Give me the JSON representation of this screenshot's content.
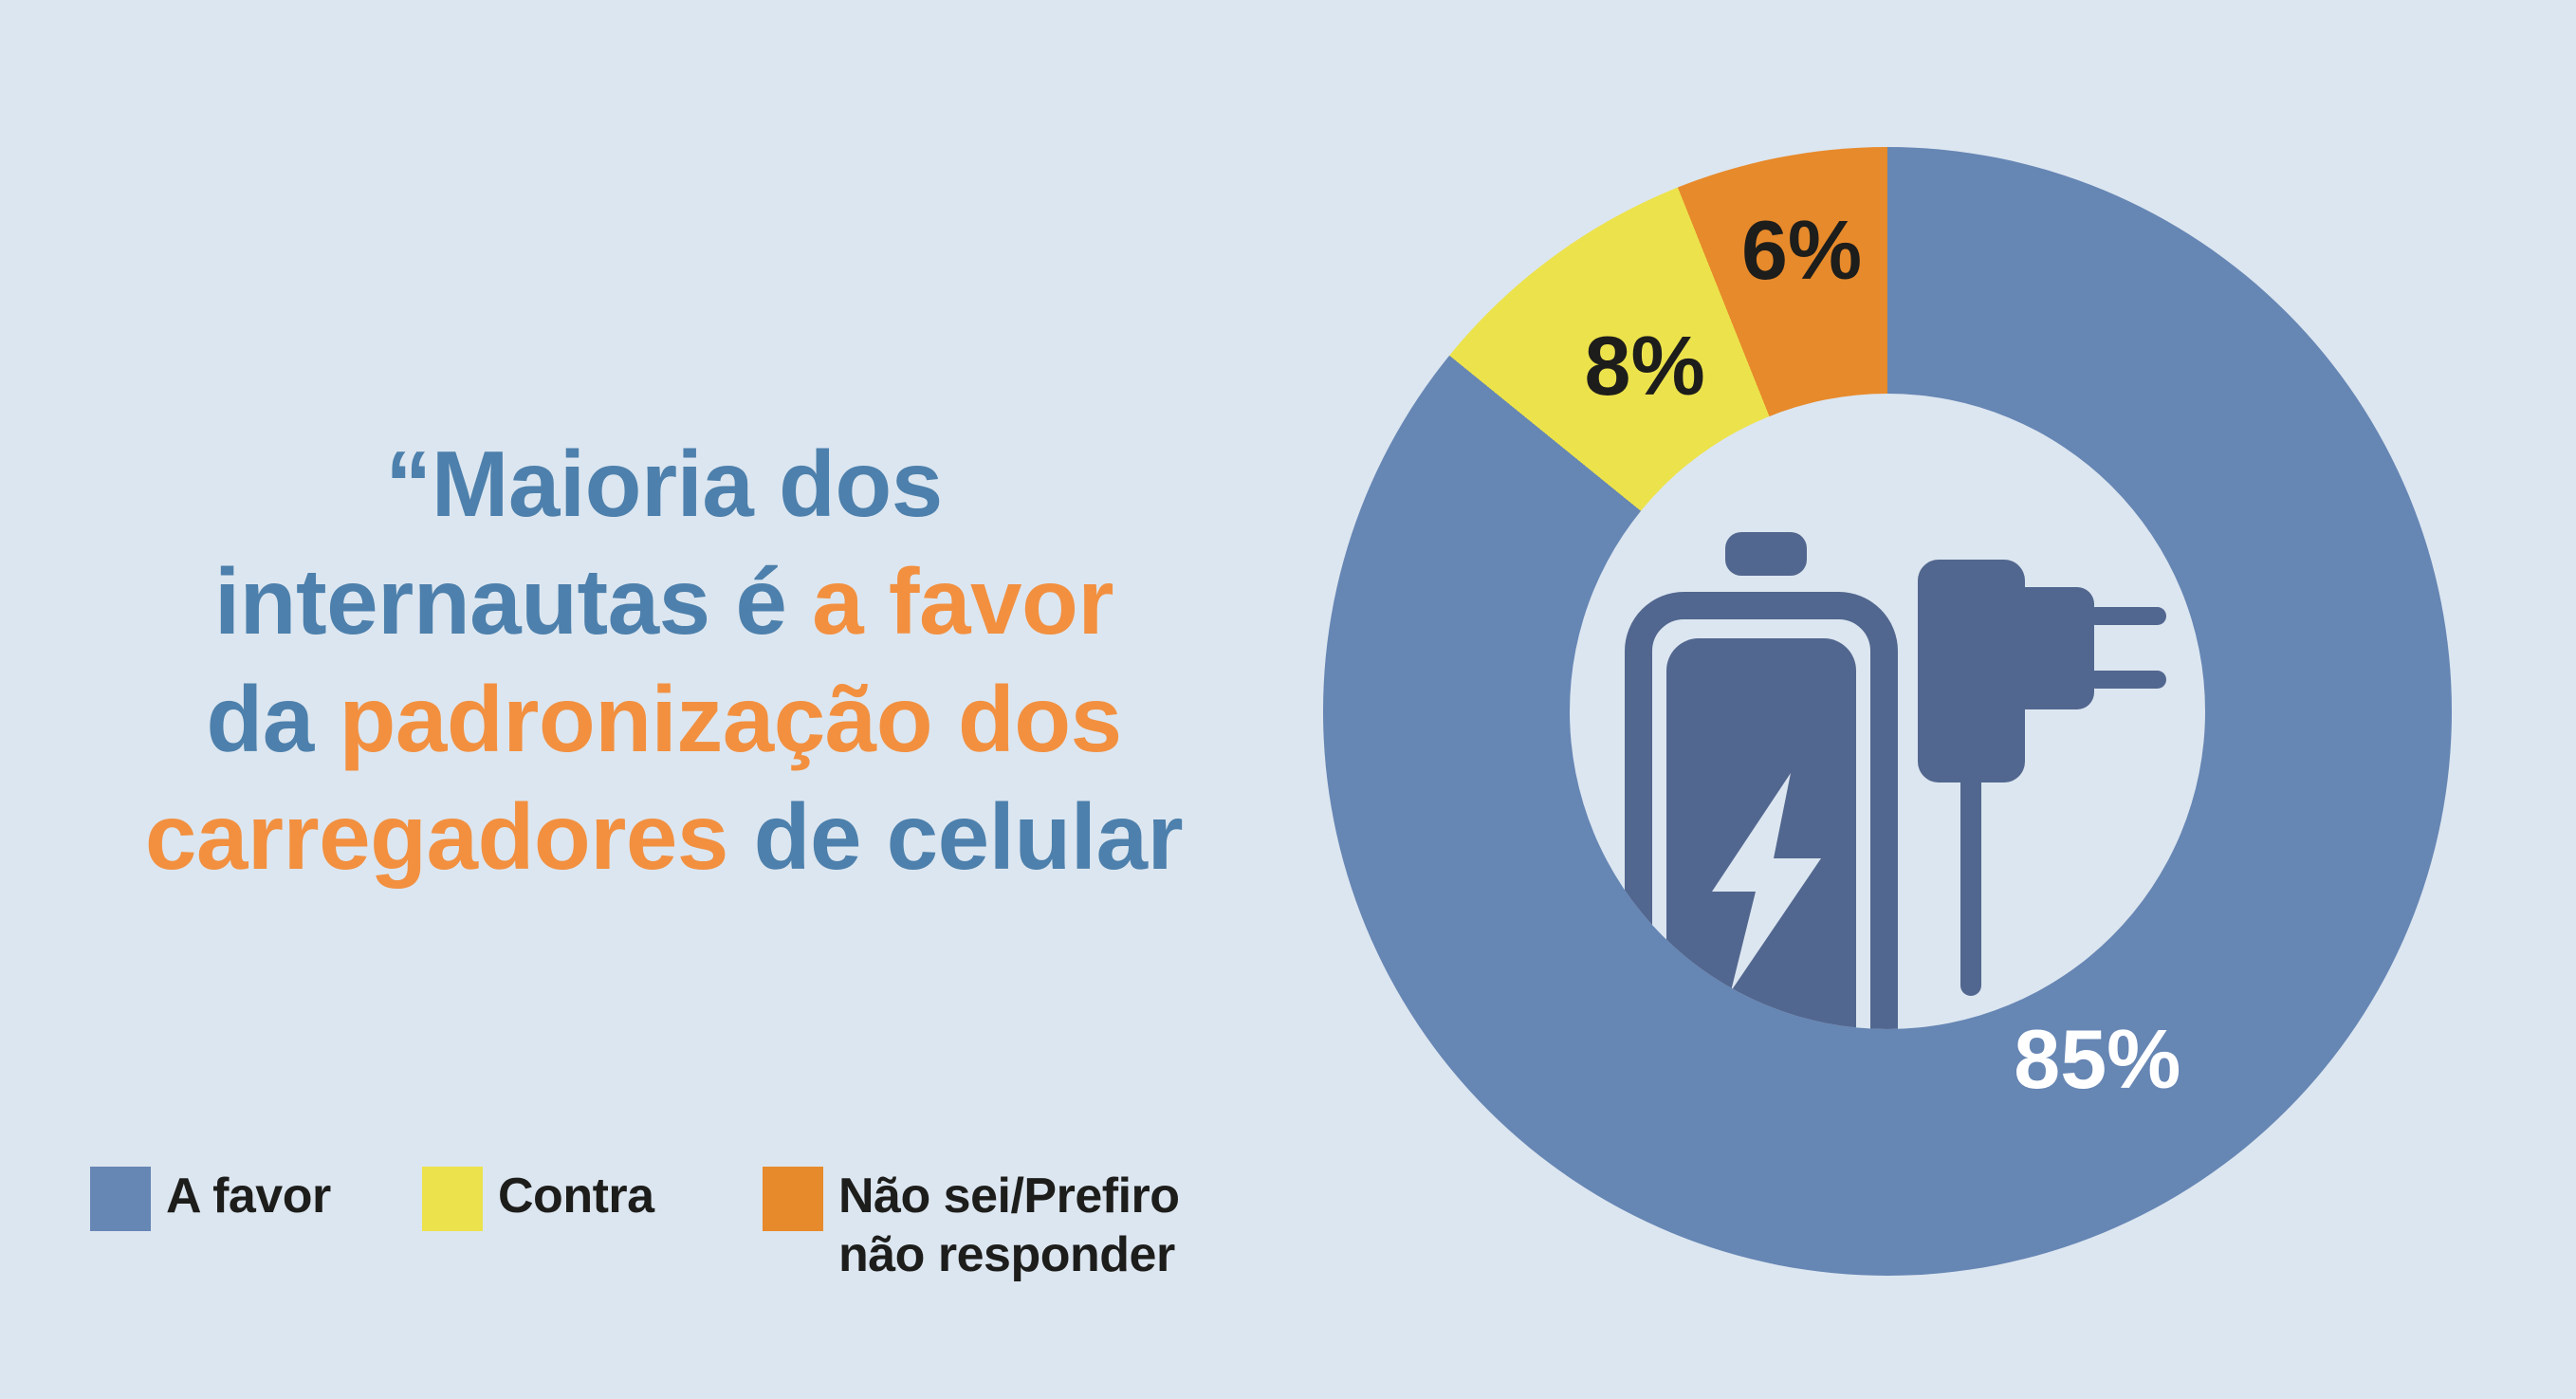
{
  "colors": {
    "background": "#dce6f0",
    "slice_blue": "#6686b4",
    "slice_yellow": "#ece24c",
    "slice_orange": "#e78a2b",
    "icon_blue": "#52678f",
    "title_blue": "#4d80ac",
    "title_orange": "#f29040",
    "label_dark": "#1d1d1b",
    "label_light": "#ffffff"
  },
  "title": {
    "lines": [
      {
        "segments": [
          {
            "text": "“Maioria dos",
            "color": "blue"
          }
        ]
      },
      {
        "segments": [
          {
            "text": "internautas é ",
            "color": "blue"
          },
          {
            "text": "a favor",
            "color": "orange"
          }
        ]
      },
      {
        "segments": [
          {
            "text": "da ",
            "color": "blue"
          },
          {
            "text": "padronização dos",
            "color": "orange"
          }
        ]
      },
      {
        "segments": [
          {
            "text": "carregadores",
            "color": "orange"
          },
          {
            "text": " de celular",
            "color": "blue"
          }
        ]
      }
    ]
  },
  "legend": {
    "items": [
      {
        "label": "A favor",
        "color": "#6686b4"
      },
      {
        "label": "Contra",
        "color": "#ece24c"
      },
      {
        "label": "Não sei/Prefiro\nnão responder",
        "color": "#e78a2b"
      }
    ]
  },
  "chart_data": {
    "type": "pie",
    "donut": true,
    "title": "“Maioria dos internautas é a favor da padronização dos carregadores de celular",
    "categories": [
      "A favor",
      "Contra",
      "Não sei/Prefiro não responder"
    ],
    "values": [
      85,
      8,
      6
    ],
    "unit": "%",
    "labels": [
      "85%",
      "8%",
      "6%"
    ],
    "colors": [
      "#6686b4",
      "#ece24c",
      "#e78a2b"
    ],
    "start_angle_deg": 0,
    "direction": "clockwise",
    "legend_position": "bottom-left",
    "center_icon": "battery-and-charger"
  }
}
